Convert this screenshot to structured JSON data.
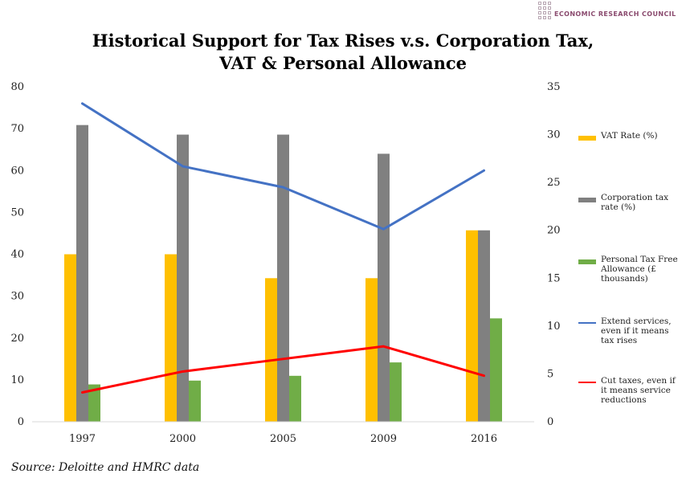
{
  "brand": {
    "name": "ECONOMIC RESEARCH COUNCIL",
    "accent": "#8a4a6e"
  },
  "title_lines": [
    "Historical Support for Tax Rises v.s. Corporation Tax,",
    "VAT & Personal Allowance"
  ],
  "source": "Source: Deloitte and HMRC data",
  "chart_data": {
    "type": "bar",
    "categories": [
      "1997",
      "2000",
      "2005",
      "2009",
      "2016"
    ],
    "y_left": {
      "min": 0,
      "max": 80,
      "step": 10
    },
    "y_right": {
      "min": 0,
      "max": 35,
      "step": 5
    },
    "grid": false,
    "legend_position": "right",
    "series": [
      {
        "name": "VAT Rate (%)",
        "kind": "bar",
        "axis": "right",
        "color": "#ffc000",
        "values": [
          17.5,
          17.5,
          15,
          15,
          20
        ]
      },
      {
        "name": "Corporation tax rate (%)",
        "kind": "bar",
        "axis": "right",
        "color": "#808080",
        "values": [
          31,
          30,
          30,
          28,
          20
        ]
      },
      {
        "name": "Personal Tax Free Allowance (£ thousands)",
        "kind": "bar",
        "axis": "right",
        "color": "#70ad47",
        "values": [
          3.9,
          4.3,
          4.8,
          6.2,
          10.8
        ]
      },
      {
        "name": "Extend services, even if it means tax rises",
        "kind": "line",
        "axis": "left",
        "color": "#4472c4",
        "values": [
          76,
          61,
          56,
          46,
          60
        ]
      },
      {
        "name": "Cut taxes, even if it means service reductions",
        "kind": "line",
        "axis": "left",
        "color": "#ff0000",
        "values": [
          7,
          12,
          15,
          18,
          11
        ]
      }
    ]
  }
}
